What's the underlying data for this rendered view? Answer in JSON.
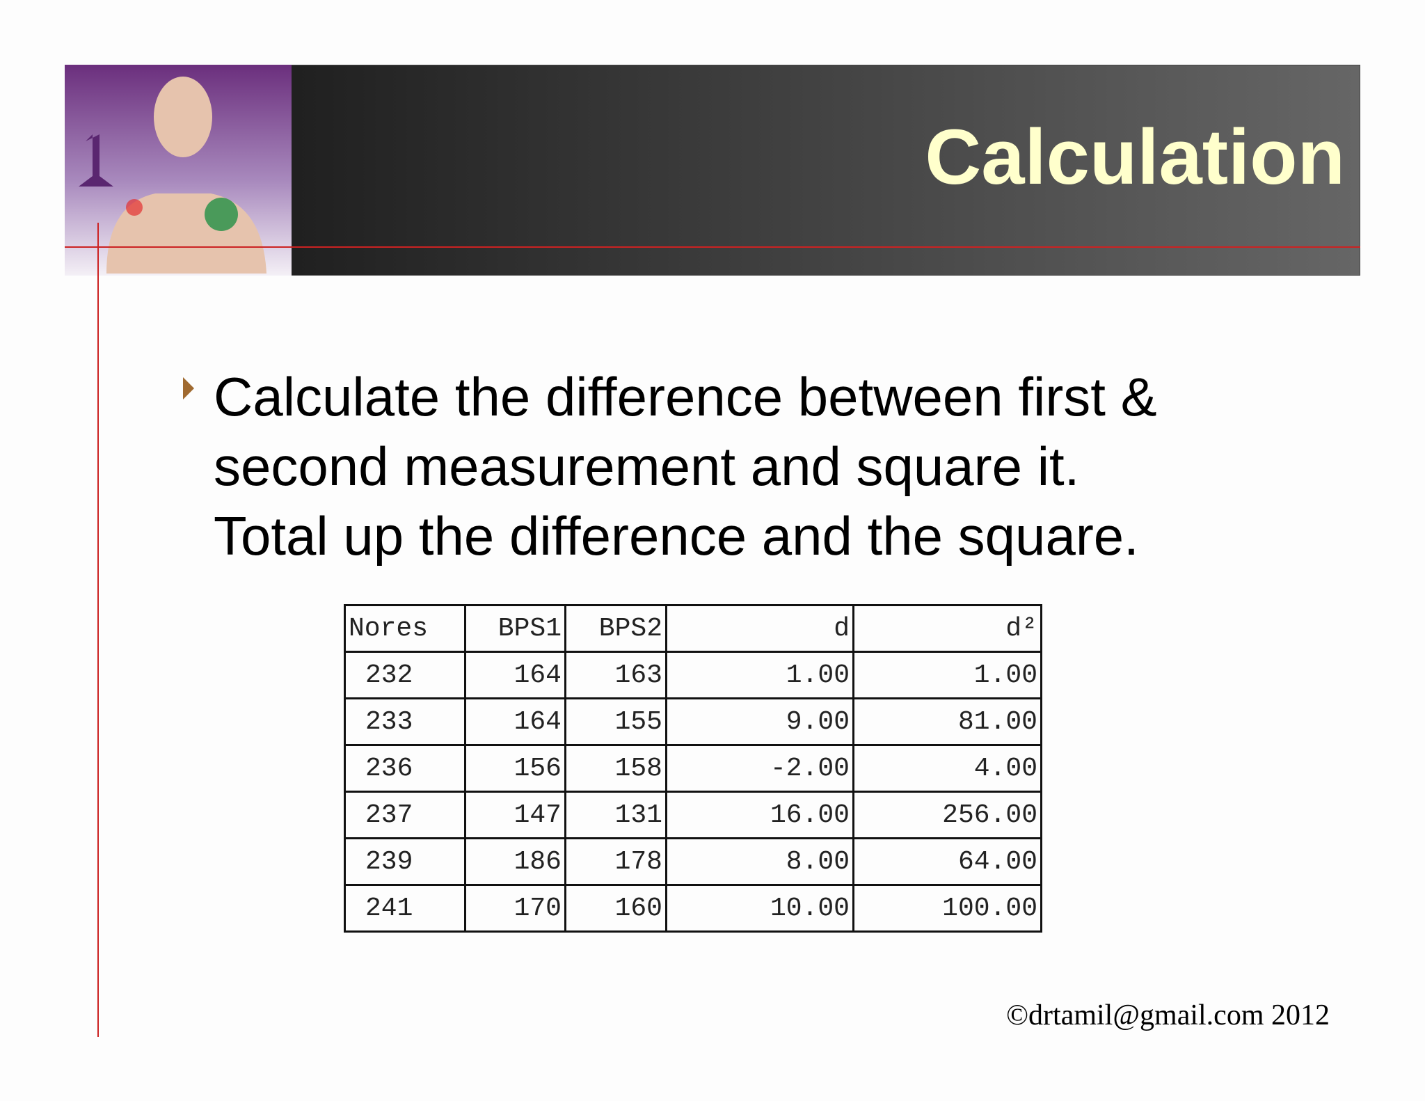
{
  "header": {
    "title": "Calculation"
  },
  "bullet": {
    "lines": [
      "Calculate the difference between first &",
      "second measurement and square it.",
      "Total up the difference and the square."
    ]
  },
  "table": {
    "columns": [
      "Nores",
      "BPS1",
      "BPS2",
      "d",
      "d²"
    ],
    "rows": [
      [
        "232",
        "164",
        "163",
        "1.00",
        "1.00"
      ],
      [
        "233",
        "164",
        "155",
        "9.00",
        "81.00"
      ],
      [
        "236",
        "156",
        "158",
        "-2.00",
        "4.00"
      ],
      [
        "237",
        "147",
        "131",
        "16.00",
        "256.00"
      ],
      [
        "239",
        "186",
        "178",
        "8.00",
        "64.00"
      ],
      [
        "241",
        "170",
        "160",
        "10.00",
        "100.00"
      ]
    ]
  },
  "footer": {
    "text": "©drtamil@gmail.com 2012"
  }
}
